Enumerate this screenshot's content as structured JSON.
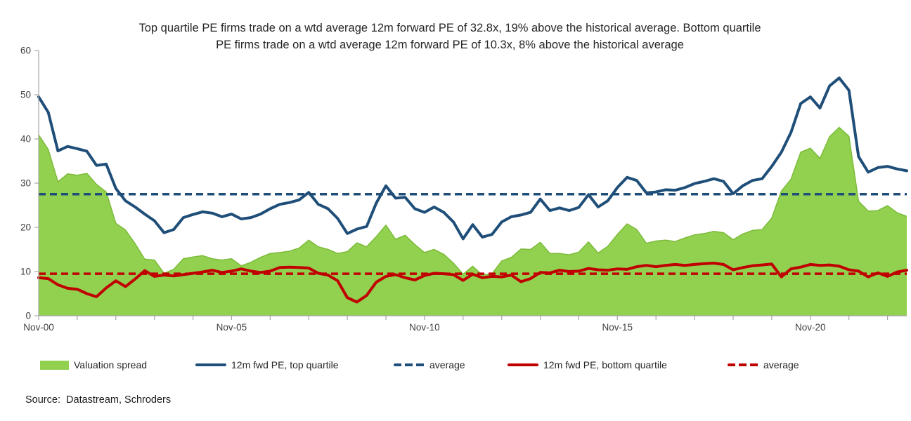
{
  "title": {
    "line1": "Top quartile PE firms trade on a wtd average 12m forward PE of 32.8x, 19% above the historical average. Bottom quartile",
    "line2": "PE firms trade on a wtd average 12m forward PE of 10.3x, 8% above the historical average"
  },
  "source": "Source:  Datastream, Schroders",
  "colors": {
    "spread_fill": "#92D050",
    "spread_edge": "#7CBB3A",
    "top_quartile": "#1F4E79",
    "bottom_quartile": "#C00000",
    "axis": "#A6A6A6",
    "tick_text": "#404040"
  },
  "legend": {
    "items": [
      {
        "label": "Valuation spread",
        "swatch": "green-area"
      },
      {
        "label": "12m fwd PE, top quartile",
        "swatch": "blue-solid-line"
      },
      {
        "label": "average",
        "swatch": "blue-dashed-line"
      },
      {
        "label": "12m fwd PE, bottom quartile",
        "swatch": "red-solid-line"
      },
      {
        "label": "average",
        "swatch": "red-dashed-line"
      }
    ]
  },
  "chart_data": {
    "type": "area+line combo",
    "title": "Top quartile PE firms trade on a wtd average 12m forward PE of 32.8x, 19% above the historical average. Bottom quartile PE firms trade on a wtd average 12m forward PE of 10.3x, 8% above the historical average",
    "xlabel": "",
    "ylabel": "",
    "ylim": [
      0,
      60
    ],
    "yticks": [
      0,
      10,
      20,
      30,
      40,
      50,
      60
    ],
    "grid": false,
    "legend_position": "bottom",
    "x_major_ticks": [
      {
        "i": 0,
        "label": "Nov-00"
      },
      {
        "i": 20,
        "label": "Nov-05"
      },
      {
        "i": 40,
        "label": "Nov-10"
      },
      {
        "i": 60,
        "label": "Nov-15"
      },
      {
        "i": 80,
        "label": "Nov-20"
      }
    ],
    "x_minor_tick_step": 4,
    "categories": [
      "Nov-00",
      "Feb-01",
      "May-01",
      "Aug-01",
      "Nov-01",
      "Feb-02",
      "May-02",
      "Aug-02",
      "Nov-02",
      "Feb-03",
      "May-03",
      "Aug-03",
      "Nov-03",
      "Feb-04",
      "May-04",
      "Aug-04",
      "Nov-04",
      "Feb-05",
      "May-05",
      "Aug-05",
      "Nov-05",
      "Feb-06",
      "May-06",
      "Aug-06",
      "Nov-06",
      "Feb-07",
      "May-07",
      "Aug-07",
      "Nov-07",
      "Feb-08",
      "May-08",
      "Aug-08",
      "Nov-08",
      "Feb-09",
      "May-09",
      "Aug-09",
      "Nov-09",
      "Feb-10",
      "May-10",
      "Aug-10",
      "Nov-10",
      "Feb-11",
      "May-11",
      "Aug-11",
      "Nov-11",
      "Feb-12",
      "May-12",
      "Aug-12",
      "Nov-12",
      "Feb-13",
      "May-13",
      "Aug-13",
      "Nov-13",
      "Feb-14",
      "May-14",
      "Aug-14",
      "Nov-14",
      "Feb-15",
      "May-15",
      "Aug-15",
      "Nov-15",
      "Feb-16",
      "May-16",
      "Aug-16",
      "Nov-16",
      "Feb-17",
      "May-17",
      "Aug-17",
      "Nov-17",
      "Feb-18",
      "May-18",
      "Aug-18",
      "Nov-18",
      "Feb-19",
      "May-19",
      "Aug-19",
      "Nov-19",
      "Feb-20",
      "May-20",
      "Aug-20",
      "Nov-20",
      "Feb-21",
      "May-21",
      "Aug-21",
      "Nov-21",
      "Feb-22",
      "May-22",
      "Aug-22",
      "Nov-22",
      "Feb-23",
      "May-23"
    ],
    "series": [
      {
        "name": "Valuation spread",
        "type": "area",
        "color": "#92D050",
        "edge_color": "#7CBB3A",
        "values": [
          40.9,
          37.6,
          30.3,
          32.1,
          31.8,
          32.2,
          29.7,
          28.0,
          20.9,
          19.4,
          16.3,
          12.8,
          12.6,
          9.6,
          10.5,
          12.9,
          13.3,
          13.6,
          12.9,
          12.6,
          12.9,
          11.3,
          12.1,
          13.2,
          14.1,
          14.3,
          14.6,
          15.3,
          17.1,
          15.6,
          15.0,
          14.1,
          14.5,
          16.5,
          15.6,
          17.9,
          20.5,
          17.3,
          18.2,
          16.1,
          14.3,
          15.0,
          13.9,
          11.9,
          9.4,
          11.2,
          9.2,
          9.5,
          12.4,
          13.2,
          15.1,
          15.0,
          16.6,
          14.1,
          14.1,
          13.8,
          14.4,
          16.7,
          14.2,
          15.7,
          18.4,
          20.8,
          19.5,
          16.4,
          16.9,
          17.1,
          16.8,
          17.6,
          18.3,
          18.6,
          19.1,
          18.8,
          17.2,
          18.5,
          19.3,
          19.5,
          22.1,
          28.2,
          30.9,
          37.0,
          37.9,
          35.6,
          40.5,
          42.6,
          40.6,
          25.9,
          23.7,
          23.8,
          24.9,
          23.3,
          22.5
        ]
      },
      {
        "name": "average (top quartile)",
        "type": "dashed-line",
        "color": "#1F4E79",
        "value": 27.5
      },
      {
        "name": "average (bottom quartile)",
        "type": "dashed-line",
        "color": "#C00000",
        "value": 9.5
      },
      {
        "name": "12m fwd PE, bottom quartile",
        "type": "line",
        "color": "#C00000",
        "values": [
          8.6,
          8.4,
          7.0,
          6.2,
          6.0,
          5.0,
          4.3,
          6.3,
          7.9,
          6.6,
          8.3,
          10.2,
          8.9,
          9.2,
          9.0,
          9.3,
          9.6,
          9.9,
          10.3,
          9.8,
          10.1,
          10.6,
          10.1,
          9.8,
          10.1,
          10.9,
          11.0,
          10.9,
          10.8,
          9.6,
          9.2,
          7.9,
          4.1,
          3.1,
          4.6,
          7.6,
          8.9,
          9.3,
          8.6,
          8.1,
          9.1,
          9.6,
          9.5,
          9.3,
          8.0,
          9.4,
          8.6,
          8.9,
          8.8,
          9.2,
          7.7,
          8.4,
          9.8,
          9.7,
          10.3,
          10.0,
          10.1,
          10.7,
          10.4,
          10.3,
          10.6,
          10.5,
          11.1,
          11.4,
          11.1,
          11.4,
          11.6,
          11.4,
          11.6,
          11.8,
          11.9,
          11.6,
          10.4,
          10.9,
          11.3,
          11.5,
          11.7,
          8.8,
          10.6,
          11.0,
          11.6,
          11.4,
          11.5,
          11.2,
          10.4,
          10.1,
          8.8,
          9.7,
          8.9,
          9.9,
          10.3
        ]
      },
      {
        "name": "12m fwd PE, top quartile",
        "type": "line",
        "color": "#1F4E79",
        "values": [
          49.5,
          46.0,
          37.3,
          38.3,
          37.8,
          37.2,
          34.0,
          34.3,
          28.8,
          26.0,
          24.6,
          23.0,
          21.5,
          18.8,
          19.5,
          22.2,
          22.9,
          23.5,
          23.2,
          22.4,
          23.0,
          21.9,
          22.2,
          23.0,
          24.2,
          25.2,
          25.6,
          26.2,
          27.9,
          25.2,
          24.2,
          22.0,
          18.6,
          19.6,
          20.2,
          25.5,
          29.4,
          26.6,
          26.8,
          24.2,
          23.4,
          24.6,
          23.4,
          21.2,
          17.4,
          20.6,
          17.8,
          18.4,
          21.2,
          22.4,
          22.8,
          23.4,
          26.4,
          23.8,
          24.4,
          23.8,
          24.5,
          27.4,
          24.6,
          26.0,
          29.0,
          31.3,
          30.6,
          27.8,
          28.0,
          28.5,
          28.4,
          29.0,
          29.9,
          30.4,
          31.0,
          30.4,
          27.6,
          29.4,
          30.6,
          31.0,
          33.8,
          37.0,
          41.5,
          48.0,
          49.5,
          47.0,
          52.0,
          53.8,
          51.0,
          36.0,
          32.5,
          33.5,
          33.8,
          33.2,
          32.8
        ]
      }
    ]
  }
}
